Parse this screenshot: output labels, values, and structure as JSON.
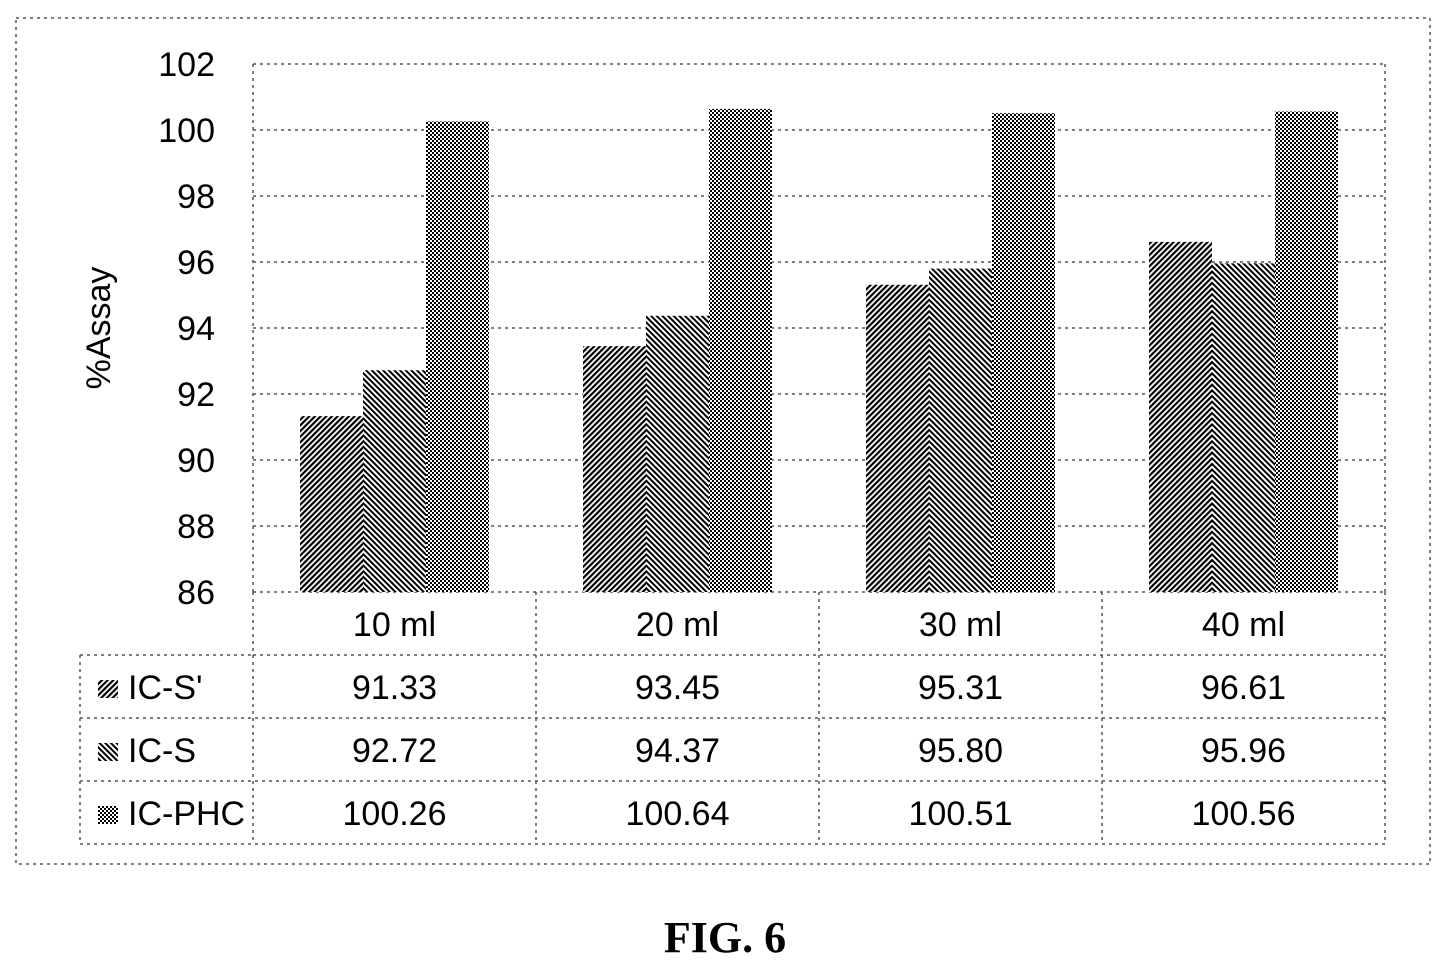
{
  "figure": {
    "caption": "FIG. 6"
  },
  "chart_data": {
    "type": "bar",
    "ylabel": "%Assay",
    "xlabel": "",
    "ylim": [
      86,
      102
    ],
    "yticks": [
      86,
      88,
      90,
      92,
      94,
      96,
      98,
      100,
      102
    ],
    "grid": true,
    "legend": "data-table-left",
    "categories": [
      "10 ml",
      "20 ml",
      "30 ml",
      "40 ml"
    ],
    "series": [
      {
        "name": "IC-S'",
        "values": [
          91.33,
          93.45,
          95.31,
          96.61
        ],
        "value_labels": [
          "91.33",
          "93.45",
          "95.31",
          "96.61"
        ]
      },
      {
        "name": "IC-S",
        "values": [
          92.72,
          94.37,
          95.8,
          95.96
        ],
        "value_labels": [
          "92.72",
          "94.37",
          "95.80",
          "95.96"
        ]
      },
      {
        "name": "IC-PHC",
        "values": [
          100.26,
          100.64,
          100.51,
          100.56
        ],
        "value_labels": [
          "100.26",
          "100.64",
          "100.51",
          "100.56"
        ]
      }
    ]
  }
}
